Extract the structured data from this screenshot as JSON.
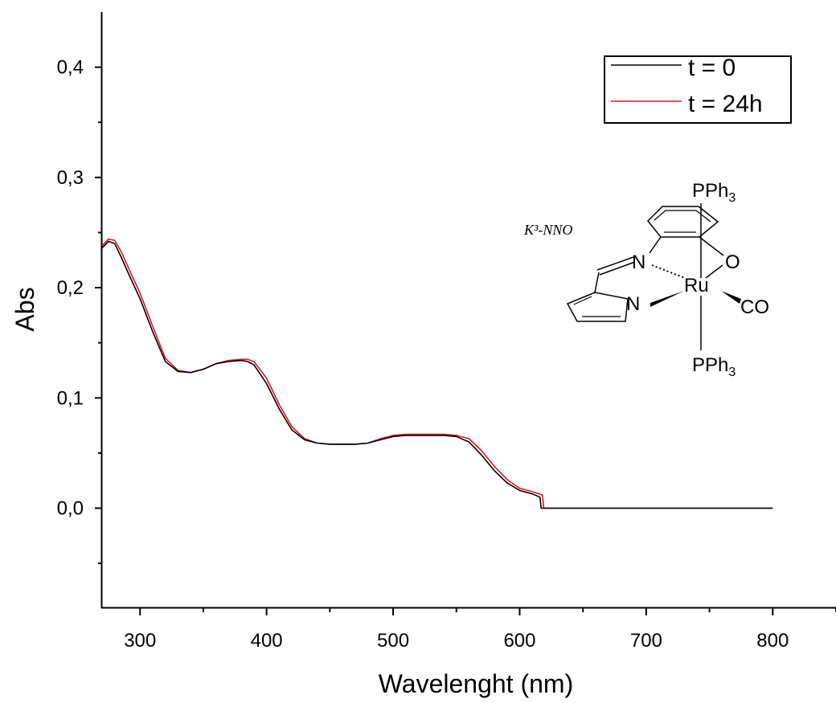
{
  "chart_data": {
    "type": "line",
    "xlabel": "Wavelenght (nm)",
    "ylabel": "Abs",
    "xlim": [
      270,
      850
    ],
    "ylim": [
      -0.09,
      0.45
    ],
    "xticks": [
      300,
      400,
      500,
      600,
      700,
      800
    ],
    "yticks": [
      0.0,
      0.1,
      0.2,
      0.3,
      0.4
    ],
    "xtick_labels": [
      "300",
      "400",
      "500",
      "600",
      "700",
      "800"
    ],
    "ytick_labels": [
      "0,0",
      "0,1",
      "0,2",
      "0,3",
      "0,4"
    ],
    "grid": false,
    "legend_position": "top-right",
    "series": [
      {
        "name": "t = 0",
        "color": "#000000",
        "x": [
          270,
          275,
          280,
          285,
          290,
          300,
          310,
          320,
          330,
          340,
          350,
          360,
          370,
          380,
          385,
          390,
          400,
          410,
          420,
          430,
          440,
          450,
          460,
          470,
          480,
          490,
          500,
          510,
          520,
          530,
          540,
          550,
          560,
          570,
          580,
          590,
          600,
          610,
          616,
          617,
          620,
          650,
          700,
          750,
          800
        ],
        "values": [
          0.236,
          0.242,
          0.24,
          0.228,
          0.215,
          0.19,
          0.16,
          0.133,
          0.124,
          0.123,
          0.126,
          0.131,
          0.133,
          0.134,
          0.133,
          0.13,
          0.113,
          0.09,
          0.071,
          0.062,
          0.059,
          0.058,
          0.058,
          0.058,
          0.059,
          0.062,
          0.065,
          0.066,
          0.066,
          0.066,
          0.066,
          0.065,
          0.06,
          0.048,
          0.034,
          0.023,
          0.016,
          0.013,
          0.01,
          0.0,
          0.0,
          0.0,
          0.0,
          0.0,
          0.0
        ]
      },
      {
        "name": "t = 24h",
        "color": "#e8141e",
        "x": [
          270,
          275,
          280,
          285,
          290,
          300,
          310,
          320,
          330,
          340,
          350,
          360,
          370,
          380,
          385,
          390,
          400,
          410,
          420,
          430,
          440,
          450,
          460,
          470,
          480,
          490,
          500,
          510,
          520,
          530,
          540,
          550,
          560,
          570,
          580,
          590,
          600,
          610,
          618,
          619,
          620,
          650,
          700,
          750,
          800
        ],
        "values": [
          0.238,
          0.244,
          0.243,
          0.233,
          0.22,
          0.195,
          0.165,
          0.136,
          0.125,
          0.123,
          0.126,
          0.131,
          0.134,
          0.135,
          0.135,
          0.133,
          0.118,
          0.094,
          0.074,
          0.063,
          0.059,
          0.058,
          0.058,
          0.058,
          0.059,
          0.063,
          0.066,
          0.067,
          0.067,
          0.067,
          0.067,
          0.066,
          0.063,
          0.052,
          0.038,
          0.026,
          0.018,
          0.015,
          0.012,
          0.0,
          0.0,
          0.0,
          0.0,
          0.0,
          0.0
        ]
      }
    ]
  },
  "inset": {
    "label": "K³-NNO",
    "atoms": {
      "pph3_top": "PPh",
      "pph3_bottom": "PPh",
      "subscript": "3",
      "ru": "Ru",
      "n_imine": "N",
      "n_pyrrole": "N",
      "o": "O",
      "co": "CO"
    }
  }
}
